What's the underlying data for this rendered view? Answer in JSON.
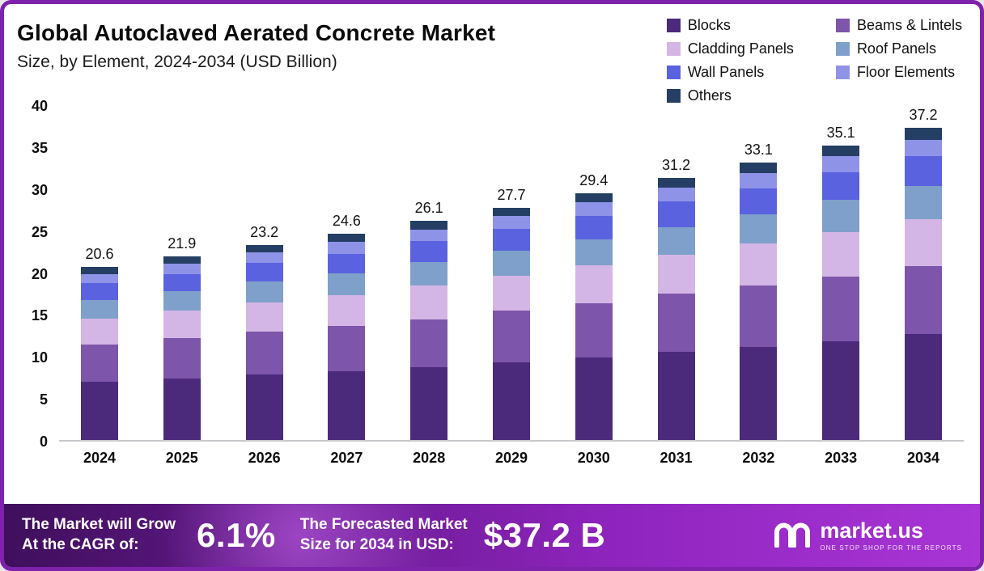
{
  "colors": {
    "frame_border": "#7e22ab",
    "banner_gradient_start": "#3f0f5c",
    "banner_gradient_end": "#a835d6"
  },
  "header": {
    "title": "Global Autoclaved Aerated Concrete Market",
    "subtitle": "Size, by Element, 2024-2034 (USD Billion)"
  },
  "chart_data": {
    "type": "bar",
    "stacked": true,
    "title": "Global Autoclaved Aerated Concrete Market Size, by Element, 2024-2034 (USD Billion)",
    "xlabel": "",
    "ylabel": "",
    "ylim": [
      0,
      40
    ],
    "yticks": [
      0,
      5,
      10,
      15,
      20,
      25,
      30,
      35,
      40
    ],
    "grid": false,
    "legend_position": "top-right",
    "categories": [
      "2024",
      "2025",
      "2026",
      "2027",
      "2028",
      "2029",
      "2030",
      "2031",
      "2032",
      "2033",
      "2034"
    ],
    "totals": [
      20.6,
      21.9,
      23.2,
      24.6,
      26.1,
      27.7,
      29.4,
      31.2,
      33.1,
      35.1,
      37.2
    ],
    "series": [
      {
        "name": "Blocks",
        "color": "#4b2a7b",
        "values": [
          6.9,
          7.3,
          7.8,
          8.2,
          8.7,
          9.3,
          9.8,
          10.5,
          11.1,
          11.8,
          12.6
        ]
      },
      {
        "name": "Beams & Lintels",
        "color": "#7d55aa",
        "values": [
          4.5,
          4.8,
          5.1,
          5.4,
          5.7,
          6.1,
          6.5,
          6.9,
          7.3,
          7.7,
          8.1
        ]
      },
      {
        "name": "Cladding Panels",
        "color": "#d4b6e6",
        "values": [
          3.1,
          3.3,
          3.5,
          3.7,
          4.0,
          4.2,
          4.5,
          4.7,
          5.0,
          5.3,
          5.6
        ]
      },
      {
        "name": "Roof Panels",
        "color": "#7fa0ca",
        "values": [
          2.2,
          2.3,
          2.5,
          2.6,
          2.8,
          3.0,
          3.1,
          3.3,
          3.5,
          3.8,
          4.0
        ]
      },
      {
        "name": "Wall Panels",
        "color": "#5a62e0",
        "values": [
          2.0,
          2.1,
          2.2,
          2.3,
          2.5,
          2.6,
          2.8,
          3.0,
          3.1,
          3.3,
          3.5
        ]
      },
      {
        "name": "Floor Elements",
        "color": "#8f93e8",
        "values": [
          1.1,
          1.2,
          1.3,
          1.4,
          1.4,
          1.5,
          1.6,
          1.7,
          1.8,
          1.9,
          2.0
        ]
      },
      {
        "name": "Others",
        "color": "#243f63",
        "values": [
          0.8,
          0.9,
          0.8,
          1.0,
          1.0,
          1.0,
          1.1,
          1.1,
          1.3,
          1.3,
          1.4
        ]
      }
    ]
  },
  "footer": {
    "cagr_label_line1": "The Market will Grow",
    "cagr_label_line2": "At the CAGR of:",
    "cagr_value": "6.1%",
    "forecast_label_line1": "The Forecasted Market",
    "forecast_label_line2": "Size for 2034 in USD:",
    "forecast_value": "$37.2 B",
    "brand_name": "market.us",
    "brand_tagline": "ONE STOP SHOP FOR THE REPORTS"
  }
}
